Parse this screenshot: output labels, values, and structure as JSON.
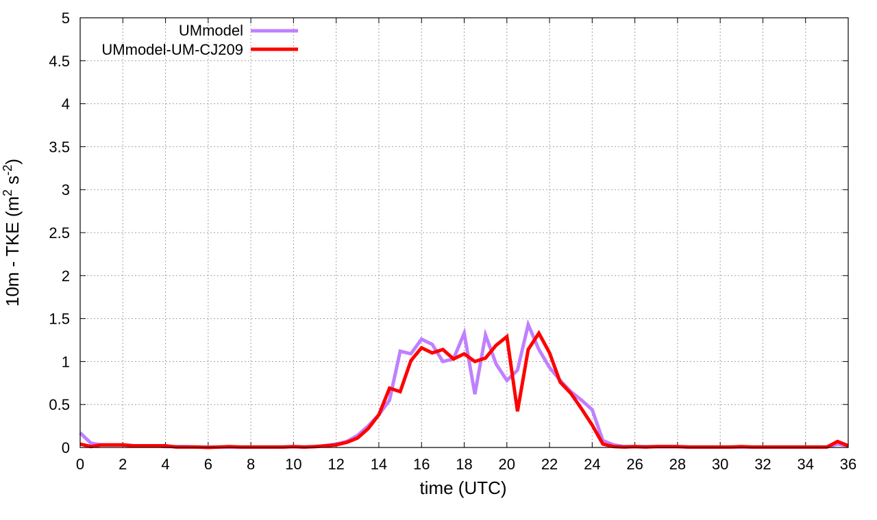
{
  "chart_data": {
    "type": "line",
    "xlabel": "time (UTC)",
    "ylabel": {
      "prefix": "10m - TKE (m",
      "sup1": "2",
      "mid": " s",
      "sup2": "-2",
      "suffix": ")"
    },
    "xlim": [
      0,
      36
    ],
    "ylim": [
      0,
      5
    ],
    "xticks": [
      0,
      2,
      4,
      6,
      8,
      10,
      12,
      14,
      16,
      18,
      20,
      22,
      24,
      26,
      28,
      30,
      32,
      34,
      36
    ],
    "yticks": [
      0,
      0.5,
      1,
      1.5,
      2,
      2.5,
      3,
      3.5,
      4,
      4.5,
      5
    ],
    "xtick_labels": [
      "0",
      "2",
      "4",
      "6",
      "8",
      "10",
      "12",
      "14",
      "16",
      "18",
      "20",
      "22",
      "24",
      "26",
      "28",
      "30",
      "32",
      "34",
      "36"
    ],
    "ytick_labels": [
      "0",
      "0.5",
      "1",
      "1.5",
      "2",
      "2.5",
      "3",
      "3.5",
      "4",
      "4.5",
      "5"
    ],
    "grid": true,
    "legend_position": "top-left",
    "series": [
      {
        "name": "UMmodel",
        "color": "#bf80ff",
        "x": [
          0,
          0.5,
          1,
          1.5,
          2,
          2.5,
          3,
          3.5,
          4,
          4.5,
          5,
          5.5,
          6,
          6.5,
          7,
          7.5,
          8,
          8.5,
          9,
          9.5,
          10,
          10.5,
          11,
          11.5,
          12,
          12.5,
          13,
          13.5,
          14,
          14.5,
          15,
          15.5,
          16,
          16.5,
          17,
          17.5,
          18,
          18.5,
          19,
          19.5,
          20,
          20.5,
          21,
          21.5,
          22,
          22.5,
          23,
          23.5,
          24,
          24.5,
          25,
          25.5,
          26,
          26.5,
          27,
          27.5,
          28,
          28.5,
          29,
          29.5,
          30,
          30.5,
          31,
          31.5,
          32,
          32.5,
          33,
          33.5,
          34,
          34.5,
          35,
          35.5,
          36
        ],
        "values": [
          0.17,
          0.05,
          0.03,
          0.03,
          0.03,
          0.02,
          0.02,
          0.02,
          0.01,
          0.01,
          0.01,
          0.005,
          0.005,
          0.005,
          0.005,
          0.005,
          0.005,
          0.005,
          0.005,
          0.005,
          0.01,
          0.005,
          0.01,
          0.02,
          0.04,
          0.07,
          0.14,
          0.25,
          0.38,
          0.55,
          1.12,
          1.09,
          1.26,
          1.2,
          1.0,
          1.03,
          1.33,
          0.62,
          1.31,
          0.97,
          0.78,
          0.9,
          1.43,
          1.14,
          0.93,
          0.78,
          0.65,
          0.55,
          0.44,
          0.08,
          0.03,
          0.01,
          0.01,
          0.01,
          0.01,
          0.01,
          0.01,
          0.005,
          0.005,
          0.005,
          0.005,
          0.005,
          0.005,
          0.005,
          0.005,
          0.005,
          0.005,
          0.005,
          0.005,
          0.005,
          0.005,
          0.04,
          0.02
        ]
      },
      {
        "name": "UMmodel-UM-CJ209",
        "color": "#ff0000",
        "x": [
          0,
          0.5,
          1,
          1.5,
          2,
          2.5,
          3,
          3.5,
          4,
          4.5,
          5,
          5.5,
          6,
          6.5,
          7,
          7.5,
          8,
          8.5,
          9,
          9.5,
          10,
          10.5,
          11,
          11.5,
          12,
          12.5,
          13,
          13.5,
          14,
          14.5,
          15,
          15.5,
          16,
          16.5,
          17,
          17.5,
          18,
          18.5,
          19,
          19.5,
          20,
          20.5,
          21,
          21.5,
          22,
          22.5,
          23,
          23.5,
          24,
          24.5,
          25,
          25.5,
          26,
          26.5,
          27,
          27.5,
          28,
          28.5,
          29,
          29.5,
          30,
          30.5,
          31,
          31.5,
          32,
          32.5,
          33,
          33.5,
          34,
          34.5,
          35,
          35.5,
          36
        ],
        "values": [
          0.04,
          0.01,
          0.03,
          0.03,
          0.03,
          0.02,
          0.02,
          0.02,
          0.02,
          0.005,
          0.005,
          0.005,
          0.0,
          0.005,
          0.01,
          0.005,
          0.005,
          0.005,
          0.005,
          0.005,
          0.01,
          0.005,
          0.01,
          0.02,
          0.03,
          0.06,
          0.11,
          0.22,
          0.38,
          0.69,
          0.65,
          1.01,
          1.16,
          1.1,
          1.14,
          1.03,
          1.09,
          1.0,
          1.04,
          1.19,
          1.29,
          0.42,
          1.14,
          1.33,
          1.1,
          0.76,
          0.63,
          0.45,
          0.26,
          0.04,
          0.01,
          0.005,
          0.01,
          0.005,
          0.01,
          0.01,
          0.01,
          0.005,
          0.005,
          0.005,
          0.005,
          0.005,
          0.01,
          0.005,
          0.005,
          0.005,
          0.005,
          0.005,
          0.005,
          0.005,
          0.005,
          0.07,
          0.02
        ]
      }
    ]
  }
}
